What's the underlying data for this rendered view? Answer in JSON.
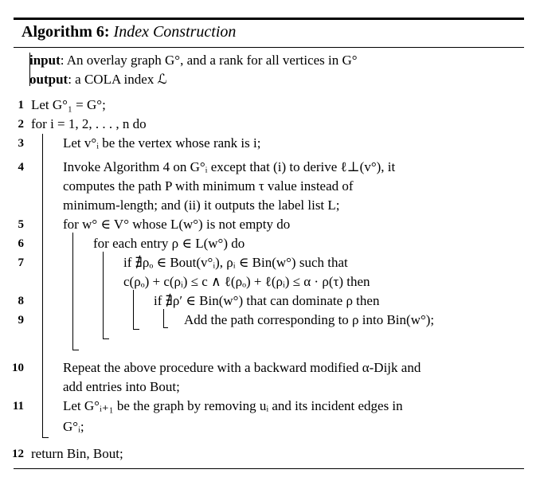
{
  "algorithm": {
    "number_label": "Algorithm 6:",
    "title": "Index Construction",
    "input_label": "input",
    "input_text": ": An overlay graph G°, and a rank for all vertices in G°",
    "output_label": "output",
    "output_text": ": a COLA index ℒ"
  },
  "lines": [
    {
      "num": "1",
      "text": "Let G°₁ = G°;"
    },
    {
      "num": "2",
      "text": "for i = 1, 2, . . . , n do"
    },
    {
      "num": "3",
      "text": "Let v°ᵢ be the vertex whose rank is i;"
    },
    {
      "num": "4",
      "text": "Invoke Algorithm 4 on G°ᵢ except that (i) to derive ℓ⊥(v°), it"
    },
    {
      "num": "",
      "text": "computes the path P with minimum τ value instead of"
    },
    {
      "num": "",
      "text": "minimum-length; and (ii) it outputs the label list L;"
    },
    {
      "num": "5",
      "text": "for w° ∈ V° whose L(w°) is not empty do"
    },
    {
      "num": "6",
      "text": "for each entry ρ ∈ L(w°) do"
    },
    {
      "num": "7",
      "text": "if ∄ρₒ ∈ Bout(v°ᵢ), ρᵢ ∈ Bin(w°) such that"
    },
    {
      "num": "",
      "text": "c(ρₒ) + c(ρᵢ) ≤ c ∧ ℓ(ρₒ) + ℓ(ρᵢ) ≤ α · ρ(τ) then"
    },
    {
      "num": "8",
      "text": "if ∄ρ′ ∈ Bin(w°) that can dominate ρ then"
    },
    {
      "num": "9",
      "text": "Add the path corresponding to ρ into Bin(w°);"
    },
    {
      "num": "10",
      "text": "Repeat the above procedure with a backward modified α-Dijk and"
    },
    {
      "num": "",
      "text": "add entries into Bout;"
    },
    {
      "num": "11",
      "text": "Let G°ᵢ₊₁ be the graph by removing uᵢ and its incident edges in"
    },
    {
      "num": "",
      "text": "G°ᵢ;"
    },
    {
      "num": "12",
      "text": "return Bin, Bout;"
    }
  ]
}
